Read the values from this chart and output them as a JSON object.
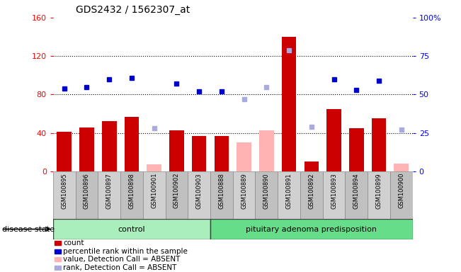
{
  "title": "GDS2432 / 1562307_at",
  "samples": [
    "GSM100895",
    "GSM100896",
    "GSM100897",
    "GSM100898",
    "GSM100901",
    "GSM100902",
    "GSM100903",
    "GSM100888",
    "GSM100889",
    "GSM100890",
    "GSM100891",
    "GSM100892",
    "GSM100893",
    "GSM100894",
    "GSM100899",
    "GSM100900"
  ],
  "counts": [
    41,
    46,
    52,
    57,
    null,
    43,
    37,
    37,
    null,
    null,
    140,
    10,
    65,
    45,
    55,
    null
  ],
  "counts_absent": [
    null,
    null,
    null,
    null,
    7,
    null,
    null,
    null,
    30,
    43,
    null,
    null,
    null,
    null,
    null,
    8
  ],
  "percentile_ranks": [
    54,
    55,
    60,
    61,
    null,
    57,
    52,
    52,
    null,
    null,
    79,
    null,
    60,
    53,
    59,
    null
  ],
  "percentile_ranks_absent": [
    null,
    null,
    null,
    null,
    28,
    null,
    null,
    null,
    47,
    55,
    79,
    29,
    null,
    null,
    null,
    27
  ],
  "control_count": 7,
  "group1_label": "control",
  "group2_label": "pituitary adenoma predisposition",
  "ylim_left": [
    0,
    160
  ],
  "ylim_right": [
    0,
    100
  ],
  "left_ticks": [
    0,
    40,
    80,
    120,
    160
  ],
  "right_ticks": [
    0,
    25,
    50,
    75,
    100
  ],
  "right_tick_labels": [
    "0",
    "25",
    "50",
    "75",
    "100%"
  ],
  "bar_color": "#cc0000",
  "bar_absent_color": "#ffb3b3",
  "dot_color": "#0000cc",
  "dot_absent_color": "#aaaadd",
  "legend_items": [
    {
      "label": "count",
      "color": "#cc0000"
    },
    {
      "label": "percentile rank within the sample",
      "color": "#0000cc"
    },
    {
      "label": "value, Detection Call = ABSENT",
      "color": "#ffb3b3"
    },
    {
      "label": "rank, Detection Call = ABSENT",
      "color": "#aaaadd"
    }
  ],
  "grid_lines": [
    40,
    80,
    120
  ],
  "group1_color": "#aaeebb",
  "group2_color": "#66dd88",
  "label_box_colors": [
    "#d0d0d0",
    "#c0c0c0"
  ]
}
